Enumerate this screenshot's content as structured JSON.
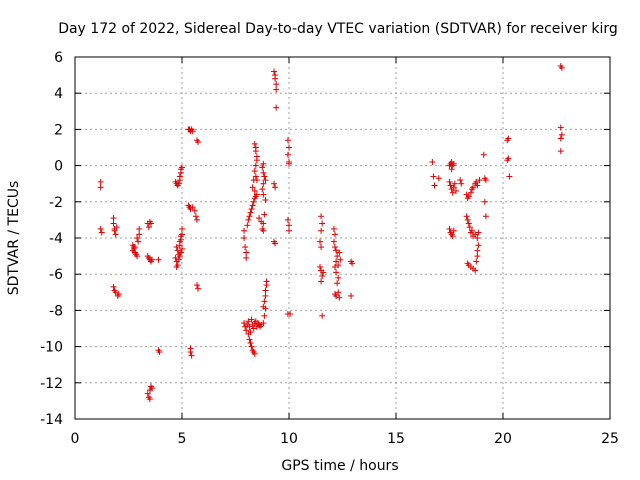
{
  "chart_data": {
    "type": "scatter",
    "title": "Day 172 of 2022, Sidereal Day-to-day VTEC variation (SDTVAR) for receiver kirg",
    "xlabel": "GPS time / hours",
    "ylabel": "SDTVAR / TECUs",
    "xlim": [
      0,
      25
    ],
    "ylim": [
      -14,
      6
    ],
    "xticks": [
      "0",
      "5",
      "10",
      "15",
      "20",
      "25"
    ],
    "xtick_values": [
      0,
      5,
      10,
      15,
      20,
      25
    ],
    "yticks": [
      "6",
      "4",
      "2",
      "0",
      "-2",
      "-4",
      "-6",
      "-8",
      "-10",
      "-12",
      "-14"
    ],
    "ytick_values": [
      6,
      4,
      2,
      0,
      -2,
      -4,
      -6,
      -8,
      -10,
      -12,
      -14
    ],
    "grid": true,
    "marker": "+",
    "color": "#e00000",
    "series": [
      {
        "name": "SDTVAR",
        "points": [
          [
            1.2,
            -0.9
          ],
          [
            1.2,
            -1.2
          ],
          [
            1.2,
            -3.5
          ],
          [
            1.25,
            -3.7
          ],
          [
            1.8,
            -2.9
          ],
          [
            1.8,
            -3.2
          ],
          [
            1.85,
            -3.5
          ],
          [
            1.85,
            -3.6
          ],
          [
            1.9,
            -3.8
          ],
          [
            1.95,
            -3.4
          ],
          [
            1.8,
            -6.7
          ],
          [
            1.85,
            -6.9
          ],
          [
            1.9,
            -7.0
          ],
          [
            2.0,
            -7.2
          ],
          [
            2.05,
            -7.1
          ],
          [
            2.7,
            -4.4
          ],
          [
            2.75,
            -4.6
          ],
          [
            2.8,
            -4.8
          ],
          [
            2.85,
            -4.9
          ],
          [
            2.9,
            -5.0
          ],
          [
            2.95,
            -4.2
          ],
          [
            3.0,
            -3.8
          ],
          [
            3.0,
            -3.5
          ],
          [
            2.9,
            -4.0
          ],
          [
            2.8,
            -4.5
          ],
          [
            2.7,
            -4.7
          ],
          [
            2.75,
            -4.5
          ],
          [
            3.4,
            -3.2
          ],
          [
            3.45,
            -3.4
          ],
          [
            3.5,
            -3.1
          ],
          [
            3.55,
            -3.2
          ],
          [
            3.4,
            -5.0
          ],
          [
            3.45,
            -5.1
          ],
          [
            3.5,
            -5.2
          ],
          [
            3.55,
            -5.3
          ],
          [
            3.6,
            -5.2
          ],
          [
            3.9,
            -5.2
          ],
          [
            3.4,
            -12.6
          ],
          [
            3.45,
            -12.8
          ],
          [
            3.5,
            -12.9
          ],
          [
            3.5,
            -12.4
          ],
          [
            3.55,
            -12.2
          ],
          [
            3.6,
            -12.3
          ],
          [
            3.9,
            -10.2
          ],
          [
            3.95,
            -10.3
          ],
          [
            4.7,
            -0.9
          ],
          [
            4.75,
            -1.0
          ],
          [
            4.8,
            -1.1
          ],
          [
            4.85,
            -1.0
          ],
          [
            4.9,
            -0.8
          ],
          [
            4.9,
            -0.6
          ],
          [
            4.95,
            -0.4
          ],
          [
            5.0,
            -0.1
          ],
          [
            4.95,
            -0.2
          ],
          [
            4.75,
            -4.5
          ],
          [
            4.8,
            -4.7
          ],
          [
            4.85,
            -4.9
          ],
          [
            4.9,
            -4.4
          ],
          [
            4.95,
            -4.1
          ],
          [
            5.0,
            -3.8
          ],
          [
            5.0,
            -3.5
          ],
          [
            4.95,
            -3.9
          ],
          [
            4.9,
            -4.2
          ],
          [
            4.7,
            -5.1
          ],
          [
            4.75,
            -5.3
          ],
          [
            4.8,
            -5.5
          ],
          [
            4.85,
            -5.2
          ],
          [
            4.9,
            -5.0
          ],
          [
            4.95,
            -4.8
          ],
          [
            5.0,
            -4.6
          ],
          [
            4.75,
            -5.6
          ],
          [
            5.3,
            2.0
          ],
          [
            5.35,
            2.0
          ],
          [
            5.4,
            1.9
          ],
          [
            5.45,
            2.0
          ],
          [
            5.5,
            1.9
          ],
          [
            5.7,
            1.4
          ],
          [
            5.75,
            1.3
          ],
          [
            5.3,
            -2.2
          ],
          [
            5.35,
            -2.3
          ],
          [
            5.4,
            -2.4
          ],
          [
            5.5,
            -2.3
          ],
          [
            5.6,
            -2.5
          ],
          [
            5.65,
            -2.8
          ],
          [
            5.7,
            -3.0
          ],
          [
            5.7,
            -6.6
          ],
          [
            5.75,
            -6.8
          ],
          [
            5.4,
            -10.3
          ],
          [
            5.45,
            -10.5
          ],
          [
            5.4,
            -10.1
          ],
          [
            7.9,
            -3.6
          ],
          [
            7.9,
            -4.0
          ],
          [
            7.95,
            -4.5
          ],
          [
            8.0,
            -4.8
          ],
          [
            8.0,
            -5.1
          ],
          [
            8.05,
            -3.3
          ],
          [
            8.1,
            -3.0
          ],
          [
            8.15,
            -2.8
          ],
          [
            8.2,
            -2.6
          ],
          [
            8.25,
            -2.4
          ],
          [
            8.3,
            -2.2
          ],
          [
            8.35,
            -2.0
          ],
          [
            8.4,
            -1.8
          ],
          [
            8.45,
            -1.7
          ],
          [
            8.5,
            -1.6
          ],
          [
            8.4,
            -1.4
          ],
          [
            8.3,
            -1.2
          ],
          [
            8.35,
            -0.8
          ],
          [
            8.4,
            1.2
          ],
          [
            8.45,
            1.0
          ],
          [
            8.45,
            0.8
          ],
          [
            8.5,
            0.5
          ],
          [
            8.5,
            0.3
          ],
          [
            8.45,
            0.0
          ],
          [
            8.4,
            -0.3
          ],
          [
            8.45,
            -0.6
          ],
          [
            8.5,
            -0.8
          ],
          [
            8.6,
            -2.9
          ],
          [
            8.7,
            -3.1
          ],
          [
            8.75,
            -3.5
          ],
          [
            8.8,
            -3.2
          ],
          [
            8.85,
            -2.7
          ],
          [
            8.8,
            -3.6
          ],
          [
            8.75,
            -0.1
          ],
          [
            8.8,
            -0.4
          ],
          [
            8.85,
            -0.6
          ],
          [
            8.9,
            -0.8
          ],
          [
            8.8,
            -1.0
          ],
          [
            8.75,
            -1.3
          ],
          [
            8.8,
            -1.6
          ],
          [
            8.9,
            -1.9
          ],
          [
            8.8,
            0.1
          ],
          [
            7.9,
            -8.7
          ],
          [
            7.95,
            -8.9
          ],
          [
            8.0,
            -9.1
          ],
          [
            8.05,
            -8.8
          ],
          [
            8.1,
            -8.6
          ],
          [
            8.15,
            -8.9
          ],
          [
            8.2,
            -9.2
          ],
          [
            8.25,
            -8.5
          ],
          [
            8.3,
            -8.8
          ],
          [
            8.35,
            -9.0
          ],
          [
            8.4,
            -8.7
          ],
          [
            8.45,
            -8.6
          ],
          [
            8.5,
            -8.9
          ],
          [
            8.55,
            -8.7
          ],
          [
            8.6,
            -8.8
          ],
          [
            8.65,
            -8.9
          ],
          [
            8.7,
            -8.8
          ],
          [
            8.8,
            -8.7
          ],
          [
            8.85,
            -8.3
          ],
          [
            8.9,
            -7.9
          ],
          [
            8.1,
            -9.3
          ],
          [
            8.15,
            -9.6
          ],
          [
            8.2,
            -9.8
          ],
          [
            8.25,
            -10.0
          ],
          [
            8.3,
            -10.2
          ],
          [
            8.35,
            -10.3
          ],
          [
            8.4,
            -10.4
          ],
          [
            8.8,
            -7.8
          ],
          [
            8.85,
            -7.5
          ],
          [
            8.9,
            -7.2
          ],
          [
            8.9,
            -6.9
          ],
          [
            8.95,
            -6.6
          ],
          [
            8.95,
            -6.4
          ],
          [
            9.3,
            5.2
          ],
          [
            9.35,
            5.0
          ],
          [
            9.35,
            4.8
          ],
          [
            9.4,
            4.5
          ],
          [
            9.4,
            4.2
          ],
          [
            9.4,
            3.2
          ],
          [
            9.3,
            -1.0
          ],
          [
            9.35,
            -1.2
          ],
          [
            9.3,
            -4.2
          ],
          [
            9.35,
            -4.3
          ],
          [
            9.95,
            1.4
          ],
          [
            10.0,
            1.0
          ],
          [
            9.95,
            0.6
          ],
          [
            10.0,
            0.2
          ],
          [
            10.0,
            0.1
          ],
          [
            9.95,
            -3.0
          ],
          [
            10.0,
            -3.3
          ],
          [
            10.0,
            -3.6
          ],
          [
            9.95,
            -8.2
          ],
          [
            10.05,
            -8.2
          ],
          [
            11.5,
            -2.8
          ],
          [
            11.55,
            -3.2
          ],
          [
            11.5,
            -3.6
          ],
          [
            11.45,
            -4.2
          ],
          [
            11.5,
            -4.5
          ],
          [
            11.45,
            -5.6
          ],
          [
            11.5,
            -5.8
          ],
          [
            11.55,
            -6.1
          ],
          [
            11.5,
            -6.4
          ],
          [
            11.6,
            -5.9
          ],
          [
            11.55,
            -8.3
          ],
          [
            12.1,
            -3.5
          ],
          [
            12.15,
            -3.8
          ],
          [
            12.1,
            -4.2
          ],
          [
            12.15,
            -4.5
          ],
          [
            12.2,
            -4.7
          ],
          [
            12.25,
            -5.0
          ],
          [
            12.2,
            -5.3
          ],
          [
            12.15,
            -5.6
          ],
          [
            12.2,
            -5.9
          ],
          [
            12.3,
            -6.2
          ],
          [
            12.25,
            -6.5
          ],
          [
            12.35,
            -4.8
          ],
          [
            12.4,
            -5.2
          ],
          [
            12.3,
            -5.5
          ],
          [
            12.15,
            -7.1
          ],
          [
            12.2,
            -7.2
          ],
          [
            12.3,
            -7.0
          ],
          [
            12.35,
            -7.3
          ],
          [
            12.9,
            -5.3
          ],
          [
            12.95,
            -5.4
          ],
          [
            12.9,
            -7.2
          ],
          [
            16.7,
            0.2
          ],
          [
            16.75,
            -0.6
          ],
          [
            16.8,
            -1.1
          ],
          [
            17.0,
            -0.7
          ],
          [
            17.5,
            -3.5
          ],
          [
            17.55,
            -3.7
          ],
          [
            17.6,
            -3.8
          ],
          [
            17.65,
            -3.9
          ],
          [
            17.7,
            -3.6
          ],
          [
            17.5,
            0.0
          ],
          [
            17.55,
            0.1
          ],
          [
            17.6,
            0.2
          ],
          [
            17.65,
            0.0
          ],
          [
            17.7,
            0.1
          ],
          [
            17.6,
            -0.2
          ],
          [
            17.5,
            -0.9
          ],
          [
            17.55,
            -1.1
          ],
          [
            17.6,
            -1.3
          ],
          [
            17.65,
            -1.5
          ],
          [
            17.7,
            -1.2
          ],
          [
            17.75,
            -1.0
          ],
          [
            17.8,
            -1.4
          ],
          [
            18.0,
            -0.8
          ],
          [
            18.05,
            -1.0
          ],
          [
            18.3,
            -1.6
          ],
          [
            18.35,
            -1.8
          ],
          [
            18.4,
            -1.7
          ],
          [
            18.5,
            -1.5
          ],
          [
            18.55,
            -1.3
          ],
          [
            18.6,
            -1.2
          ],
          [
            18.7,
            -1.0
          ],
          [
            18.75,
            -0.9
          ],
          [
            18.8,
            -1.1
          ],
          [
            18.9,
            -0.8
          ],
          [
            18.3,
            -2.8
          ],
          [
            18.35,
            -3.0
          ],
          [
            18.4,
            -3.2
          ],
          [
            18.45,
            -3.4
          ],
          [
            18.5,
            -3.7
          ],
          [
            18.55,
            -3.6
          ],
          [
            18.6,
            -3.9
          ],
          [
            18.7,
            -3.8
          ],
          [
            18.8,
            -4.0
          ],
          [
            18.85,
            -3.7
          ],
          [
            18.35,
            -5.4
          ],
          [
            18.4,
            -5.5
          ],
          [
            18.5,
            -5.6
          ],
          [
            18.6,
            -5.7
          ],
          [
            18.7,
            -5.8
          ],
          [
            18.75,
            -5.3
          ],
          [
            18.8,
            -5.0
          ],
          [
            18.8,
            -4.7
          ],
          [
            18.85,
            -4.4
          ],
          [
            19.1,
            0.6
          ],
          [
            19.15,
            -0.7
          ],
          [
            19.2,
            -0.8
          ],
          [
            19.15,
            -2.0
          ],
          [
            19.2,
            -2.8
          ],
          [
            20.2,
            1.4
          ],
          [
            20.25,
            1.5
          ],
          [
            20.2,
            0.3
          ],
          [
            20.25,
            0.4
          ],
          [
            20.3,
            -0.6
          ],
          [
            22.7,
            5.5
          ],
          [
            22.75,
            5.4
          ],
          [
            22.7,
            2.1
          ],
          [
            22.75,
            1.7
          ],
          [
            22.7,
            1.5
          ],
          [
            22.7,
            0.8
          ]
        ]
      }
    ]
  }
}
